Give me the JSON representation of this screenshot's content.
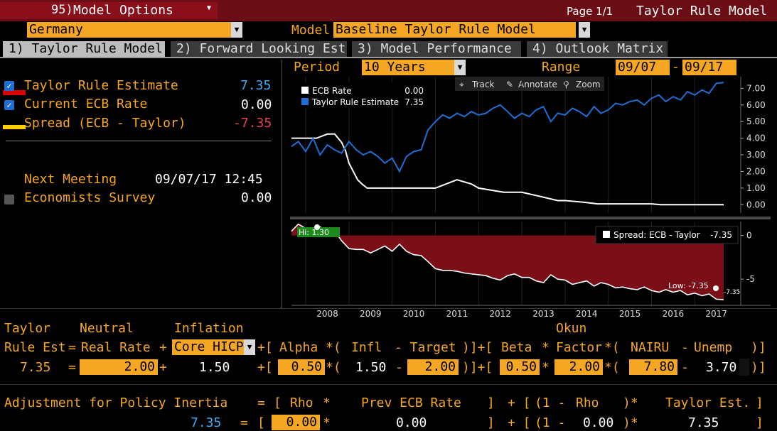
{
  "header": {
    "menu_number": "95)",
    "menu_label": "Model Options",
    "page": "Page 1/1",
    "screen_title": "Taylor Rule Model"
  },
  "selectors": {
    "country": "Germany",
    "model_label": "Model",
    "model": "Baseline Taylor Rule Model"
  },
  "tabs": [
    {
      "label": "1) Taylor Rule Model"
    },
    {
      "label": "2) Forward Looking Est"
    },
    {
      "label": "3) Model Performance"
    },
    {
      "label": "4) Outlook Matrix"
    }
  ],
  "summary": {
    "taylor_label": "Taylor Rule Estimate",
    "taylor_value": "7.35",
    "ecb_label": "Current ECB Rate",
    "ecb_value": "0.00",
    "spread_label": "Spread (ECB - Taylor)",
    "spread_value": "-7.35",
    "next_meeting_label": "Next Meeting",
    "next_meeting_value": "09/07/17 12:45",
    "survey_label": "Economists Survey",
    "survey_value": "0.00"
  },
  "chart_controls": {
    "period_label": "Period",
    "period_value": "10 Years",
    "range_label": "Range",
    "range_start": "09/07",
    "range_sep": "-",
    "range_end": "09/17",
    "track": "Track",
    "annotate": "Annotate",
    "zoom": "Zoom"
  },
  "colors": {
    "accent": "#f5a623",
    "ecb_line": "#ffffff",
    "taylor_line": "#1e6ed4",
    "spread_fill": "#7a0f18",
    "negative": "#e8414f",
    "highlight_green": "#1e8a1e"
  },
  "chart_data": [
    {
      "type": "line",
      "series": [
        {
          "name": "ECB Rate",
          "legend_value": "0.00",
          "x": [
            2007.67,
            2008.0,
            2008.25,
            2008.5,
            2008.67,
            2008.83,
            2008.92,
            2009.0,
            2009.1,
            2009.2,
            2009.3,
            2009.42,
            2011.0,
            2011.25,
            2011.5,
            2011.83,
            2012.0,
            2012.58,
            2013.0,
            2013.42,
            2013.83,
            2014.0,
            2014.42,
            2014.75,
            2015.0,
            2016.0,
            2016.2,
            2017.0,
            2017.67
          ],
          "values": [
            4.0,
            4.0,
            4.0,
            4.25,
            4.25,
            3.75,
            3.25,
            2.5,
            2.0,
            1.5,
            1.25,
            1.0,
            1.0,
            1.25,
            1.5,
            1.25,
            1.0,
            0.75,
            0.75,
            0.5,
            0.25,
            0.25,
            0.15,
            0.05,
            0.05,
            0.05,
            0.0,
            0.0,
            0.0
          ]
        },
        {
          "name": "Taylor Rule Estimate",
          "legend_value": "7.35",
          "x": [
            2007.67,
            2007.83,
            2008.0,
            2008.17,
            2008.33,
            2008.5,
            2008.67,
            2008.83,
            2009.0,
            2009.17,
            2009.33,
            2009.5,
            2009.67,
            2009.83,
            2010.0,
            2010.17,
            2010.33,
            2010.5,
            2010.67,
            2010.83,
            2011.0,
            2011.17,
            2011.33,
            2011.5,
            2011.67,
            2011.83,
            2012.0,
            2012.17,
            2012.33,
            2012.5,
            2012.67,
            2012.83,
            2013.0,
            2013.17,
            2013.33,
            2013.5,
            2013.67,
            2013.83,
            2014.0,
            2014.17,
            2014.33,
            2014.5,
            2014.67,
            2014.83,
            2015.0,
            2015.17,
            2015.33,
            2015.5,
            2015.67,
            2015.83,
            2016.0,
            2016.17,
            2016.33,
            2016.5,
            2016.67,
            2016.83,
            2017.0,
            2017.17,
            2017.33,
            2017.5,
            2017.67
          ],
          "values": [
            3.5,
            3.8,
            3.2,
            4.0,
            3.0,
            3.6,
            3.3,
            3.1,
            3.8,
            3.3,
            3.0,
            3.2,
            2.9,
            2.5,
            2.8,
            2.0,
            2.9,
            3.2,
            3.3,
            4.5,
            5.0,
            5.4,
            5.2,
            5.5,
            5.3,
            5.6,
            5.4,
            5.5,
            5.8,
            6.0,
            5.6,
            5.2,
            5.5,
            5.3,
            5.7,
            5.9,
            5.0,
            5.5,
            5.4,
            5.8,
            5.6,
            5.3,
            5.9,
            5.5,
            5.7,
            6.1,
            6.0,
            6.2,
            6.3,
            6.0,
            6.4,
            6.6,
            6.2,
            6.5,
            6.3,
            6.8,
            6.6,
            6.9,
            6.7,
            7.3,
            7.35
          ]
        }
      ],
      "xlim": [
        2007.67,
        2017.67
      ],
      "ylim": [
        -0.5,
        7.7
      ],
      "yticks": [
        "7.00",
        "6.00",
        "5.00",
        "4.00",
        "3.00",
        "2.00",
        "1.00",
        "0.00"
      ]
    },
    {
      "type": "area",
      "series": [
        {
          "name": "Spread: ECB - Taylor",
          "legend_value": "-7.35",
          "x": [
            2007.67,
            2007.83,
            2008.0,
            2008.17,
            2008.33,
            2008.5,
            2008.67,
            2008.83,
            2009.0,
            2009.17,
            2009.33,
            2009.5,
            2009.67,
            2009.83,
            2010.0,
            2010.17,
            2010.33,
            2010.5,
            2010.67,
            2010.83,
            2011.0,
            2011.17,
            2011.33,
            2011.5,
            2011.67,
            2011.83,
            2012.0,
            2012.17,
            2012.33,
            2012.5,
            2012.67,
            2012.83,
            2013.0,
            2013.17,
            2013.33,
            2013.5,
            2013.67,
            2013.83,
            2014.0,
            2014.17,
            2014.33,
            2014.5,
            2014.67,
            2014.83,
            2015.0,
            2015.17,
            2015.33,
            2015.5,
            2015.67,
            2015.83,
            2016.0,
            2016.17,
            2016.33,
            2016.5,
            2016.67,
            2016.83,
            2017.0,
            2017.17,
            2017.33,
            2017.5,
            2017.67
          ],
          "values": [
            0.5,
            1.3,
            0.8,
            0.3,
            1.0,
            0.4,
            0.5,
            -0.6,
            -1.5,
            -1.6,
            -1.6,
            -2.0,
            -1.6,
            -1.2,
            -1.8,
            -1.0,
            -1.8,
            -2.2,
            -2.3,
            -3.0,
            -3.8,
            -4.0,
            -4.0,
            -4.1,
            -4.3,
            -4.4,
            -4.5,
            -4.6,
            -4.9,
            -5.1,
            -4.6,
            -4.4,
            -4.8,
            -4.8,
            -5.2,
            -5.4,
            -4.5,
            -5.0,
            -5.1,
            -5.6,
            -5.4,
            -5.2,
            -5.8,
            -5.4,
            -5.6,
            -6.0,
            -5.9,
            -6.1,
            -6.2,
            -5.9,
            -6.3,
            -6.5,
            -6.2,
            -6.5,
            -6.3,
            -6.8,
            -6.6,
            -6.9,
            -6.7,
            -7.3,
            -7.35
          ]
        }
      ],
      "high_label": "Hi: 1.30",
      "low_label": "Low: -7.35",
      "last_label": "-7.35",
      "ylim": [
        -8.0,
        1.6
      ],
      "yticks": [
        "0",
        "-5"
      ],
      "categories": [
        "2008",
        "2009",
        "2010",
        "2011",
        "2012",
        "2013",
        "2014",
        "2015",
        "2016",
        "2017"
      ]
    }
  ],
  "formula": {
    "row1": {
      "taylor": "Taylor",
      "neutral": "Neutral",
      "inflation": "Inflation",
      "okun": "Okun"
    },
    "row2": {
      "rule_est": "Rule Est",
      "eq": "=",
      "real_rate": "Real Rate",
      "plus": "+",
      "core": "Core HICP",
      "bracket_open": "+[",
      "alpha": "Alpha",
      "star_paren": "*(",
      "infl": "Infl",
      "minus_target": "- Target",
      "close_plus": ")]+[",
      "beta": "Beta",
      "star": "*",
      "factor": "Factor",
      "nairu": "NAIRU",
      "minus": "-",
      "unemp": "Unemp",
      "close": ")]"
    },
    "row3": {
      "result": "7.35",
      "eq": "=",
      "neutral": "2.00",
      "plus": "+",
      "inflation": "1.50",
      "bracket": "+[",
      "alpha": "0.50",
      "star_paren": "*(",
      "infl": "1.50",
      "minus": "-",
      "target": "2.00",
      "close_plus": ")]+[",
      "beta": "0.50",
      "star": "*",
      "okun": "2.00",
      "star_paren2": "*(",
      "nairu": "7.80",
      "minus2": "-",
      "unemp": "3.70",
      "close": ")]"
    },
    "row4": {
      "label": "Adjustment for Policy Inertia",
      "eq": "=",
      "lb": "[",
      "rho": "Rho",
      "star": "*",
      "prev": "Prev ECB Rate",
      "rb": "]",
      "plus_lb": "+ [",
      "one_minus": "(1 -",
      "rho2": "Rho",
      "close_star": ")*",
      "taylor_est": "Taylor Est.",
      "rb2": "]"
    },
    "row5": {
      "result": "7.35",
      "eq": "=",
      "lb": "[",
      "rho": "0.00",
      "star": "*",
      "prev": "0.00",
      "rb": "]",
      "plus_lb": "+ [",
      "one_minus": "(1 -",
      "rho2": "0.00",
      "close_star": ")*",
      "taylor_est": "7.35",
      "rb2": "]"
    }
  }
}
